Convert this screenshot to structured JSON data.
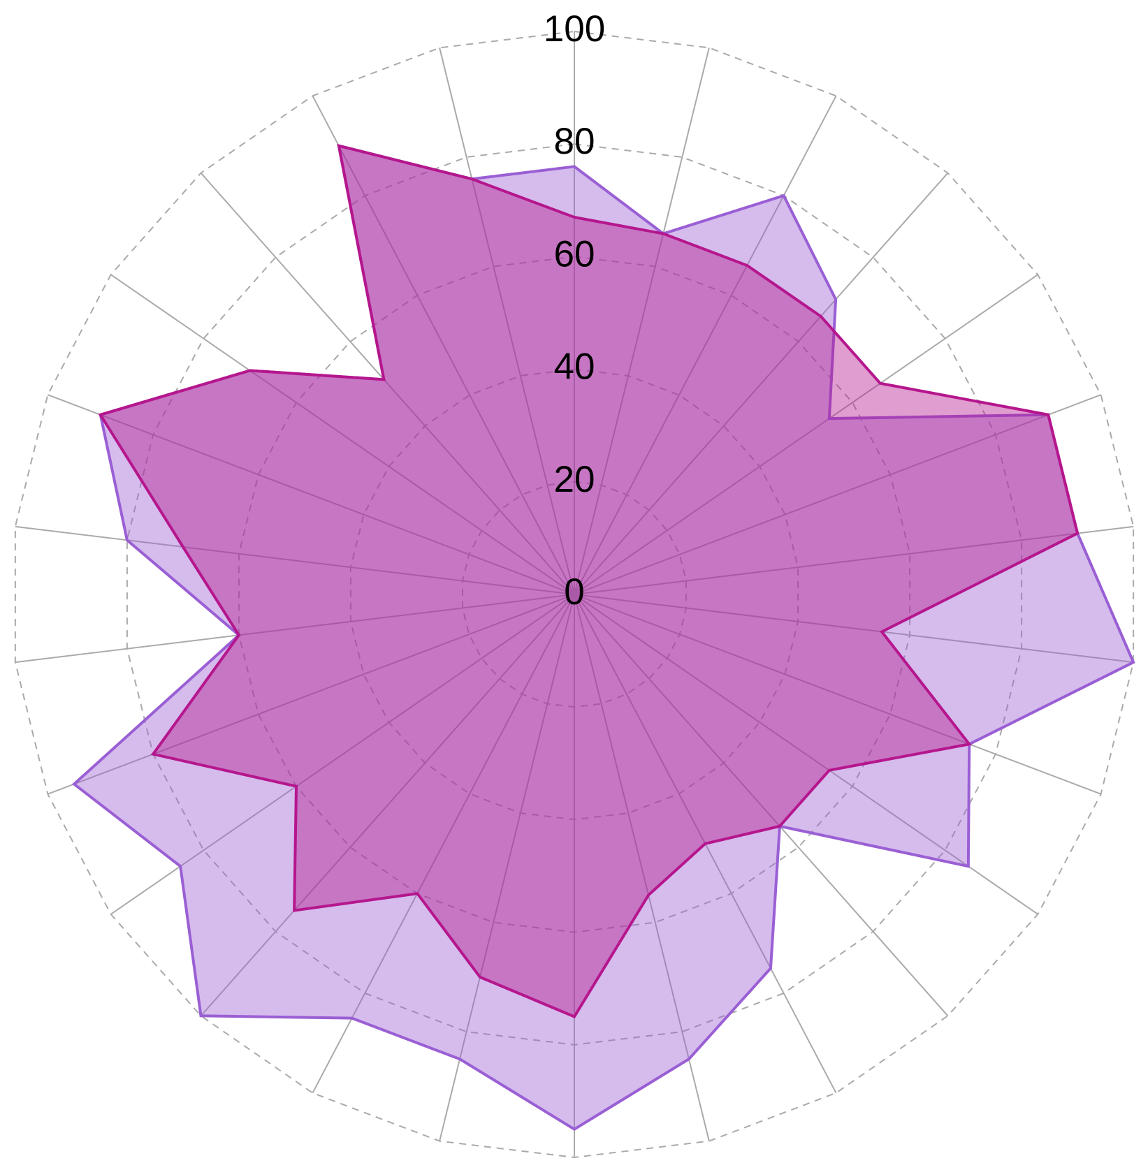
{
  "chart_data": {
    "type": "radar",
    "rlim": [
      0,
      100
    ],
    "rticks": [
      0,
      20,
      40,
      60,
      80,
      100
    ],
    "grid": true,
    "series": [
      {
        "color": "#9a5fd4",
        "values": [
          76,
          66,
          80,
          70,
          55,
          90,
          90,
          100,
          75,
          85,
          55,
          75,
          85,
          95,
          85,
          85,
          100,
          85,
          95,
          60,
          80,
          90,
          70,
          51,
          90,
          76
        ]
      },
      {
        "color": "#b5168d",
        "values": [
          67,
          66,
          66,
          66,
          66,
          90,
          90,
          55,
          75,
          55,
          55,
          50,
          55,
          75,
          70,
          60,
          75,
          60,
          80,
          60,
          70,
          90,
          70,
          51,
          90,
          76
        ]
      }
    ]
  }
}
